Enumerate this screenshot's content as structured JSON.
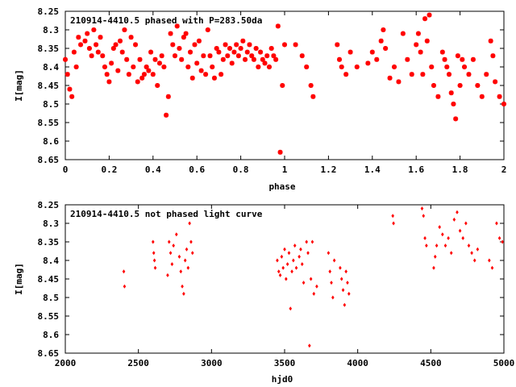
{
  "chart_data": [
    {
      "type": "scatter",
      "title": "210914-4410.5 phased with P=283.50da",
      "xlabel": "phase",
      "ylabel": "I[mag]",
      "xlim": [
        0,
        2
      ],
      "ylim": [
        8.65,
        8.25
      ],
      "y_inverted": true,
      "xticks": [
        "0",
        "0.2",
        "0.4",
        "0.6",
        "0.8",
        "1",
        "1.2",
        "1.4",
        "1.6",
        "1.8",
        "2"
      ],
      "yticks": [
        "8.25",
        "8.3",
        "8.35",
        "8.4",
        "8.45",
        "8.5",
        "8.55",
        "8.6",
        "8.65"
      ],
      "marker_color": "#ff0000",
      "points": [
        [
          0.0,
          8.38
        ],
        [
          0.01,
          8.42
        ],
        [
          0.02,
          8.46
        ],
        [
          0.03,
          8.48
        ],
        [
          0.04,
          8.36
        ],
        [
          0.05,
          8.4
        ],
        [
          0.06,
          8.32
        ],
        [
          0.07,
          8.34
        ],
        [
          0.09,
          8.33
        ],
        [
          0.1,
          8.31
        ],
        [
          0.11,
          8.35
        ],
        [
          0.12,
          8.37
        ],
        [
          0.13,
          8.3
        ],
        [
          0.14,
          8.34
        ],
        [
          0.15,
          8.36
        ],
        [
          0.16,
          8.32
        ],
        [
          0.17,
          8.37
        ],
        [
          0.18,
          8.4
        ],
        [
          0.19,
          8.42
        ],
        [
          0.2,
          8.44
        ],
        [
          0.21,
          8.39
        ],
        [
          0.22,
          8.35
        ],
        [
          0.23,
          8.34
        ],
        [
          0.24,
          8.41
        ],
        [
          0.25,
          8.33
        ],
        [
          0.26,
          8.36
        ],
        [
          0.27,
          8.3
        ],
        [
          0.28,
          8.38
        ],
        [
          0.29,
          8.42
        ],
        [
          0.3,
          8.32
        ],
        [
          0.31,
          8.4
        ],
        [
          0.32,
          8.34
        ],
        [
          0.33,
          8.44
        ],
        [
          0.34,
          8.38
        ],
        [
          0.35,
          8.43
        ],
        [
          0.36,
          8.42
        ],
        [
          0.37,
          8.4
        ],
        [
          0.38,
          8.41
        ],
        [
          0.39,
          8.36
        ],
        [
          0.4,
          8.42
        ],
        [
          0.41,
          8.38
        ],
        [
          0.42,
          8.45
        ],
        [
          0.43,
          8.39
        ],
        [
          0.44,
          8.37
        ],
        [
          0.45,
          8.4
        ],
        [
          0.46,
          8.53
        ],
        [
          0.47,
          8.48
        ],
        [
          0.48,
          8.31
        ],
        [
          0.49,
          8.34
        ],
        [
          0.5,
          8.37
        ],
        [
          0.51,
          8.29
        ],
        [
          0.52,
          8.35
        ],
        [
          0.53,
          8.38
        ],
        [
          0.54,
          8.32
        ],
        [
          0.55,
          8.31
        ],
        [
          0.56,
          8.4
        ],
        [
          0.57,
          8.36
        ],
        [
          0.58,
          8.43
        ],
        [
          0.59,
          8.34
        ],
        [
          0.6,
          8.39
        ],
        [
          0.61,
          8.33
        ],
        [
          0.62,
          8.41
        ],
        [
          0.63,
          8.37
        ],
        [
          0.64,
          8.42
        ],
        [
          0.65,
          8.3
        ],
        [
          0.66,
          8.37
        ],
        [
          0.67,
          8.4
        ],
        [
          0.68,
          8.43
        ],
        [
          0.69,
          8.35
        ],
        [
          0.7,
          8.36
        ],
        [
          0.71,
          8.42
        ],
        [
          0.72,
          8.38
        ],
        [
          0.73,
          8.34
        ],
        [
          0.74,
          8.37
        ],
        [
          0.75,
          8.35
        ],
        [
          0.76,
          8.39
        ],
        [
          0.77,
          8.36
        ],
        [
          0.78,
          8.34
        ],
        [
          0.79,
          8.37
        ],
        [
          0.8,
          8.35
        ],
        [
          0.81,
          8.33
        ],
        [
          0.82,
          8.38
        ],
        [
          0.83,
          8.36
        ],
        [
          0.84,
          8.34
        ],
        [
          0.85,
          8.37
        ],
        [
          0.86,
          8.38
        ],
        [
          0.87,
          8.35
        ],
        [
          0.88,
          8.4
        ],
        [
          0.89,
          8.36
        ],
        [
          0.9,
          8.38
        ],
        [
          0.91,
          8.39
        ],
        [
          0.92,
          8.37
        ],
        [
          0.93,
          8.4
        ],
        [
          0.94,
          8.35
        ],
        [
          0.95,
          8.37
        ],
        [
          0.96,
          8.38
        ],
        [
          0.97,
          8.29
        ],
        [
          0.98,
          8.63
        ],
        [
          0.99,
          8.45
        ],
        [
          1.0,
          8.34
        ],
        [
          1.05,
          8.34
        ],
        [
          1.08,
          8.37
        ],
        [
          1.1,
          8.4
        ],
        [
          1.12,
          8.45
        ],
        [
          1.13,
          8.48
        ],
        [
          1.24,
          8.34
        ],
        [
          1.25,
          8.38
        ],
        [
          1.26,
          8.4
        ],
        [
          1.28,
          8.42
        ],
        [
          1.3,
          8.36
        ],
        [
          1.33,
          8.4
        ],
        [
          1.38,
          8.39
        ],
        [
          1.4,
          8.36
        ],
        [
          1.42,
          8.38
        ],
        [
          1.44,
          8.33
        ],
        [
          1.45,
          8.3
        ],
        [
          1.46,
          8.35
        ],
        [
          1.48,
          8.43
        ],
        [
          1.5,
          8.4
        ],
        [
          1.52,
          8.44
        ],
        [
          1.54,
          8.31
        ],
        [
          1.56,
          8.38
        ],
        [
          1.58,
          8.42
        ],
        [
          1.6,
          8.34
        ],
        [
          1.61,
          8.31
        ],
        [
          1.62,
          8.36
        ],
        [
          1.63,
          8.42
        ],
        [
          1.64,
          8.27
        ],
        [
          1.65,
          8.33
        ],
        [
          1.66,
          8.26
        ],
        [
          1.67,
          8.4
        ],
        [
          1.68,
          8.45
        ],
        [
          1.7,
          8.48
        ],
        [
          1.72,
          8.36
        ],
        [
          1.73,
          8.38
        ],
        [
          1.74,
          8.4
        ],
        [
          1.75,
          8.42
        ],
        [
          1.76,
          8.47
        ],
        [
          1.77,
          8.5
        ],
        [
          1.78,
          8.54
        ],
        [
          1.79,
          8.37
        ],
        [
          1.8,
          8.45
        ],
        [
          1.81,
          8.38
        ],
        [
          1.82,
          8.4
        ],
        [
          1.84,
          8.42
        ],
        [
          1.86,
          8.38
        ],
        [
          1.88,
          8.45
        ],
        [
          1.9,
          8.48
        ],
        [
          1.92,
          8.42
        ],
        [
          1.94,
          8.33
        ],
        [
          1.95,
          8.37
        ],
        [
          1.96,
          8.44
        ],
        [
          1.98,
          8.48
        ],
        [
          2.0,
          8.5
        ]
      ]
    },
    {
      "type": "scatter",
      "title": "210914-4410.5 not phased light curve",
      "xlabel": "hjd0",
      "ylabel": "I[mag]",
      "xlim": [
        2000,
        5000
      ],
      "ylim": [
        8.65,
        8.25
      ],
      "y_inverted": true,
      "xticks": [
        "2000",
        "2500",
        "3000",
        "3500",
        "4000",
        "4500",
        "5000"
      ],
      "yticks": [
        "8.25",
        "8.3",
        "8.35",
        "8.4",
        "8.45",
        "8.5",
        "8.55",
        "8.6",
        "8.65"
      ],
      "marker_color": "#ff0000",
      "points": [
        [
          2400,
          8.43
        ],
        [
          2405,
          8.47
        ],
        [
          2600,
          8.35
        ],
        [
          2605,
          8.38
        ],
        [
          2610,
          8.4
        ],
        [
          2615,
          8.42
        ],
        [
          2700,
          8.44
        ],
        [
          2710,
          8.35
        ],
        [
          2720,
          8.38
        ],
        [
          2730,
          8.41
        ],
        [
          2740,
          8.36
        ],
        [
          2760,
          8.33
        ],
        [
          2780,
          8.39
        ],
        [
          2790,
          8.43
        ],
        [
          2800,
          8.47
        ],
        [
          2810,
          8.49
        ],
        [
          2820,
          8.4
        ],
        [
          2830,
          8.37
        ],
        [
          2840,
          8.42
        ],
        [
          2850,
          8.3
        ],
        [
          2860,
          8.35
        ],
        [
          2870,
          8.38
        ],
        [
          3450,
          8.4
        ],
        [
          3460,
          8.43
        ],
        [
          3470,
          8.44
        ],
        [
          3480,
          8.39
        ],
        [
          3490,
          8.42
        ],
        [
          3500,
          8.37
        ],
        [
          3510,
          8.45
        ],
        [
          3520,
          8.41
        ],
        [
          3530,
          8.38
        ],
        [
          3540,
          8.53
        ],
        [
          3550,
          8.43
        ],
        [
          3560,
          8.4
        ],
        [
          3570,
          8.36
        ],
        [
          3580,
          8.42
        ],
        [
          3600,
          8.39
        ],
        [
          3610,
          8.37
        ],
        [
          3620,
          8.41
        ],
        [
          3630,
          8.46
        ],
        [
          3650,
          8.35
        ],
        [
          3660,
          8.38
        ],
        [
          3670,
          8.63
        ],
        [
          3680,
          8.45
        ],
        [
          3690,
          8.35
        ],
        [
          3700,
          8.49
        ],
        [
          3720,
          8.47
        ],
        [
          3800,
          8.38
        ],
        [
          3810,
          8.43
        ],
        [
          3820,
          8.46
        ],
        [
          3830,
          8.5
        ],
        [
          3840,
          8.4
        ],
        [
          3880,
          8.42
        ],
        [
          3890,
          8.45
        ],
        [
          3900,
          8.48
        ],
        [
          3910,
          8.52
        ],
        [
          3920,
          8.43
        ],
        [
          3930,
          8.46
        ],
        [
          3940,
          8.49
        ],
        [
          4240,
          8.28
        ],
        [
          4245,
          8.3
        ],
        [
          4440,
          8.26
        ],
        [
          4450,
          8.28
        ],
        [
          4460,
          8.34
        ],
        [
          4470,
          8.36
        ],
        [
          4520,
          8.42
        ],
        [
          4530,
          8.39
        ],
        [
          4540,
          8.36
        ],
        [
          4560,
          8.31
        ],
        [
          4580,
          8.33
        ],
        [
          4600,
          8.36
        ],
        [
          4620,
          8.34
        ],
        [
          4640,
          8.38
        ],
        [
          4660,
          8.29
        ],
        [
          4680,
          8.27
        ],
        [
          4700,
          8.32
        ],
        [
          4720,
          8.34
        ],
        [
          4740,
          8.3
        ],
        [
          4760,
          8.36
        ],
        [
          4780,
          8.38
        ],
        [
          4800,
          8.4
        ],
        [
          4820,
          8.37
        ],
        [
          4900,
          8.4
        ],
        [
          4920,
          8.42
        ],
        [
          4950,
          8.3
        ],
        [
          4970,
          8.34
        ],
        [
          4990,
          8.35
        ]
      ]
    }
  ]
}
